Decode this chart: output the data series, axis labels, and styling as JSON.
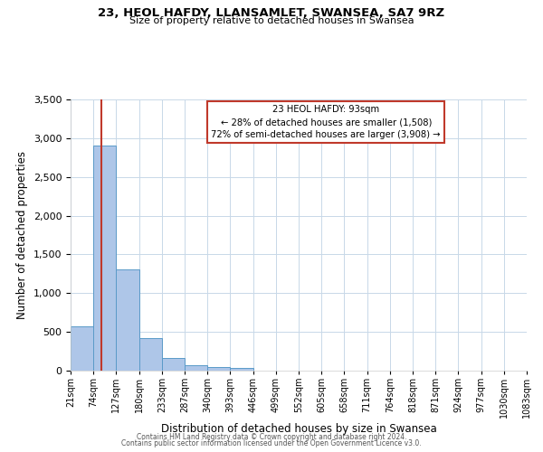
{
  "title": "23, HEOL HAFDY, LLANSAMLET, SWANSEA, SA7 9RZ",
  "subtitle": "Size of property relative to detached houses in Swansea",
  "xlabel": "Distribution of detached houses by size in Swansea",
  "ylabel": "Number of detached properties",
  "bin_labels": [
    "21sqm",
    "74sqm",
    "127sqm",
    "180sqm",
    "233sqm",
    "287sqm",
    "340sqm",
    "393sqm",
    "446sqm",
    "499sqm",
    "552sqm",
    "605sqm",
    "658sqm",
    "711sqm",
    "764sqm",
    "818sqm",
    "871sqm",
    "924sqm",
    "977sqm",
    "1030sqm",
    "1083sqm"
  ],
  "bar_values": [
    575,
    2900,
    1310,
    415,
    165,
    70,
    50,
    40,
    0,
    0,
    0,
    0,
    0,
    0,
    0,
    0,
    0,
    0,
    0,
    0
  ],
  "bar_color": "#aec6e8",
  "bar_edge_color": "#5a9ac8",
  "property_line_x": 1.36,
  "property_line_color": "#c0392b",
  "annotation_title": "23 HEOL HAFDY: 93sqm",
  "annotation_line1": "← 28% of detached houses are smaller (1,508)",
  "annotation_line2": "72% of semi-detached houses are larger (3,908) →",
  "annotation_box_color": "#c0392b",
  "ylim": [
    0,
    3500
  ],
  "yticks": [
    0,
    500,
    1000,
    1500,
    2000,
    2500,
    3000,
    3500
  ],
  "footer1": "Contains HM Land Registry data © Crown copyright and database right 2024.",
  "footer2": "Contains public sector information licensed under the Open Government Licence v3.0.",
  "background_color": "#ffffff",
  "grid_color": "#c8d8e8"
}
